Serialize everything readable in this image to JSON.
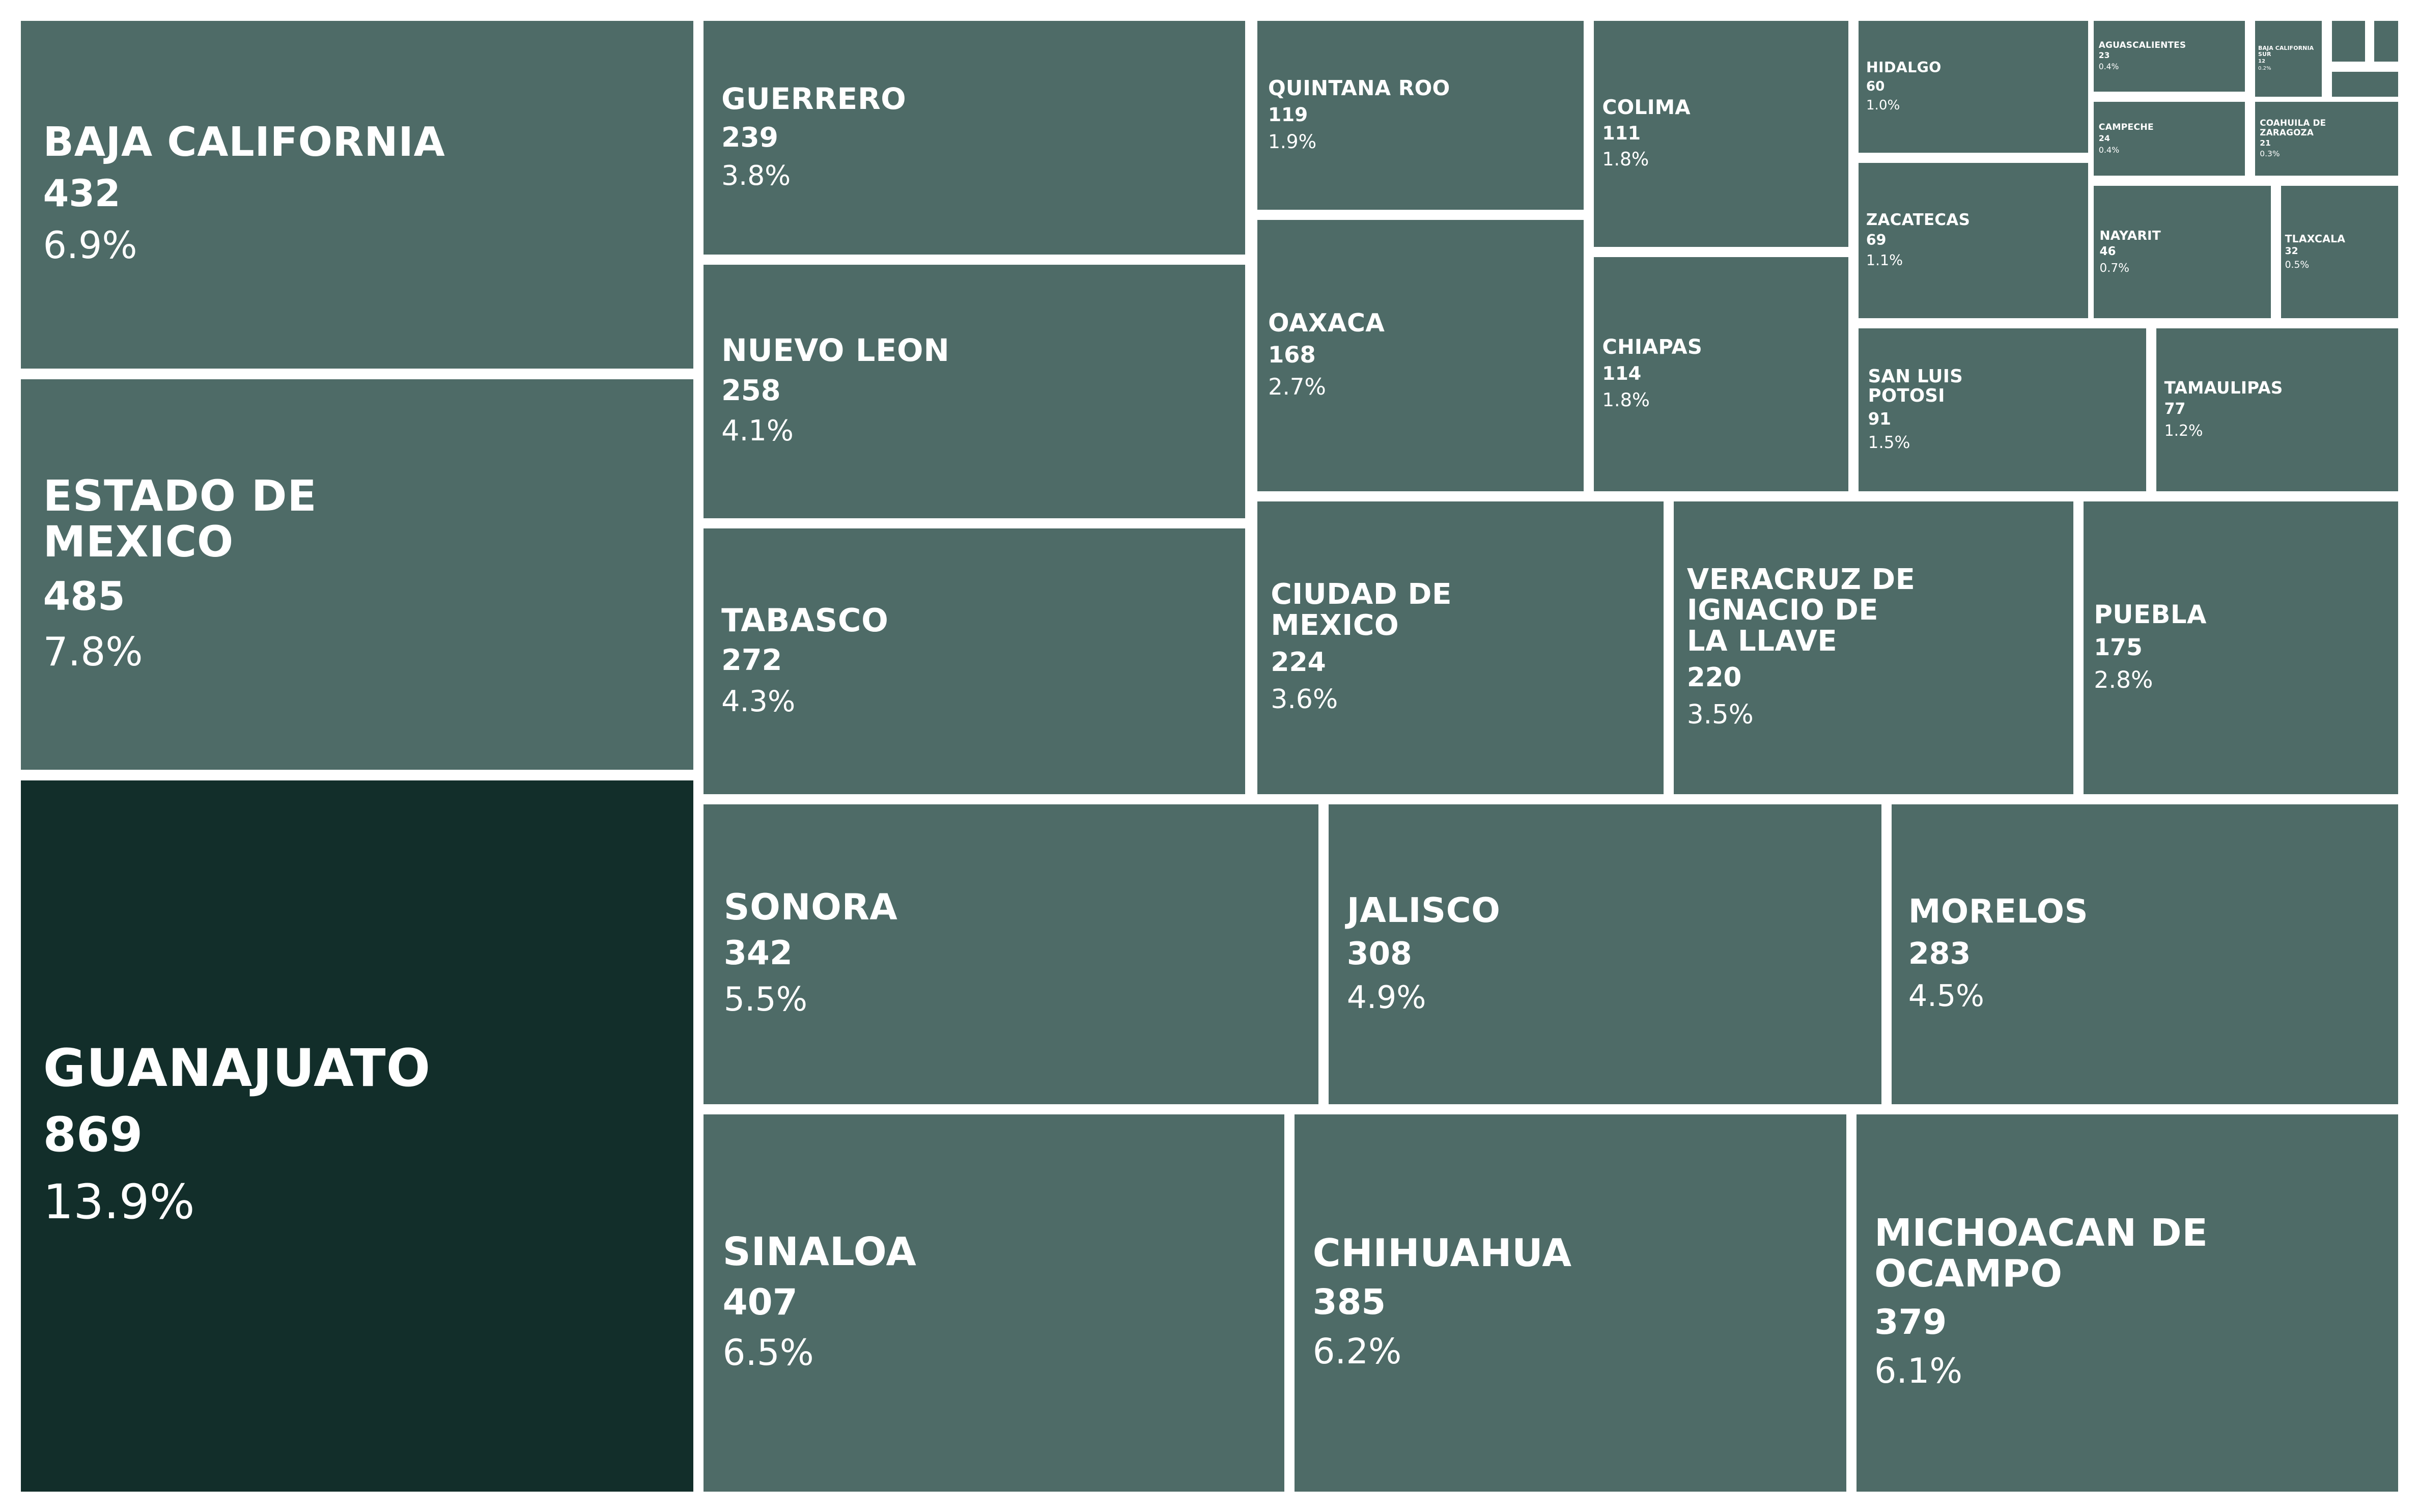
{
  "chart_data": {
    "type": "treemap",
    "colors": {
      "default": "#4e6b67",
      "highlight": "#122e2a",
      "background": "#ffffff",
      "text": "#ffffff"
    },
    "highlight": "GUANAJUATO",
    "items": [
      {
        "label": "GUANAJUATO",
        "value": 869,
        "pct": "13.9%"
      },
      {
        "label": "ESTADO DE\nMEXICO",
        "value": 485,
        "pct": "7.8%"
      },
      {
        "label": "BAJA CALIFORNIA",
        "value": 432,
        "pct": "6.9%"
      },
      {
        "label": "SINALOA",
        "value": 407,
        "pct": "6.5%"
      },
      {
        "label": "CHIHUAHUA",
        "value": 385,
        "pct": "6.2%"
      },
      {
        "label": "MICHOACAN DE\nOCAMPO",
        "value": 379,
        "pct": "6.1%"
      },
      {
        "label": "SONORA",
        "value": 342,
        "pct": "5.5%"
      },
      {
        "label": "JALISCO",
        "value": 308,
        "pct": "4.9%"
      },
      {
        "label": "MORELOS",
        "value": 283,
        "pct": "4.5%"
      },
      {
        "label": "TABASCO",
        "value": 272,
        "pct": "4.3%"
      },
      {
        "label": "NUEVO LEON",
        "value": 258,
        "pct": "4.1%"
      },
      {
        "label": "GUERRERO",
        "value": 239,
        "pct": "3.8%"
      },
      {
        "label": "CIUDAD DE\nMEXICO",
        "value": 224,
        "pct": "3.6%"
      },
      {
        "label": "VERACRUZ DE\nIGNACIO DE\nLA LLAVE",
        "value": 220,
        "pct": "3.5%"
      },
      {
        "label": "PUEBLA",
        "value": 175,
        "pct": "2.8%"
      },
      {
        "label": "OAXACA",
        "value": 168,
        "pct": "2.7%"
      },
      {
        "label": "QUINTANA ROO",
        "value": 119,
        "pct": "1.9%"
      },
      {
        "label": "CHIAPAS",
        "value": 114,
        "pct": "1.8%"
      },
      {
        "label": "COLIMA",
        "value": 111,
        "pct": "1.8%"
      },
      {
        "label": "SAN LUIS\nPOTOSI",
        "value": 91,
        "pct": "1.5%"
      },
      {
        "label": "TAMAULIPAS",
        "value": 77,
        "pct": "1.2%"
      },
      {
        "label": "ZACATECAS",
        "value": 69,
        "pct": "1.1%"
      },
      {
        "label": "HIDALGO",
        "value": 60,
        "pct": "1.0%"
      },
      {
        "label": "NAYARIT",
        "value": 46,
        "pct": "0.7%"
      },
      {
        "label": "TLAXCALA",
        "value": 32,
        "pct": "0.5%"
      },
      {
        "label": "CAMPECHE",
        "value": 24,
        "pct": "0.4%"
      },
      {
        "label": "AGUASCALIENTES",
        "value": 23,
        "pct": "0.4%"
      },
      {
        "label": "COAHUILA DE\nZARAGOZA",
        "value": 21,
        "pct": "0.3%"
      },
      {
        "label": "BAJA CALIFORNIA\nSUR",
        "value": 12,
        "pct": "0.2%"
      },
      {
        "label": "",
        "value": null,
        "pct": ""
      },
      {
        "label": "",
        "value": null,
        "pct": ""
      },
      {
        "label": "",
        "value": null,
        "pct": ""
      }
    ]
  }
}
